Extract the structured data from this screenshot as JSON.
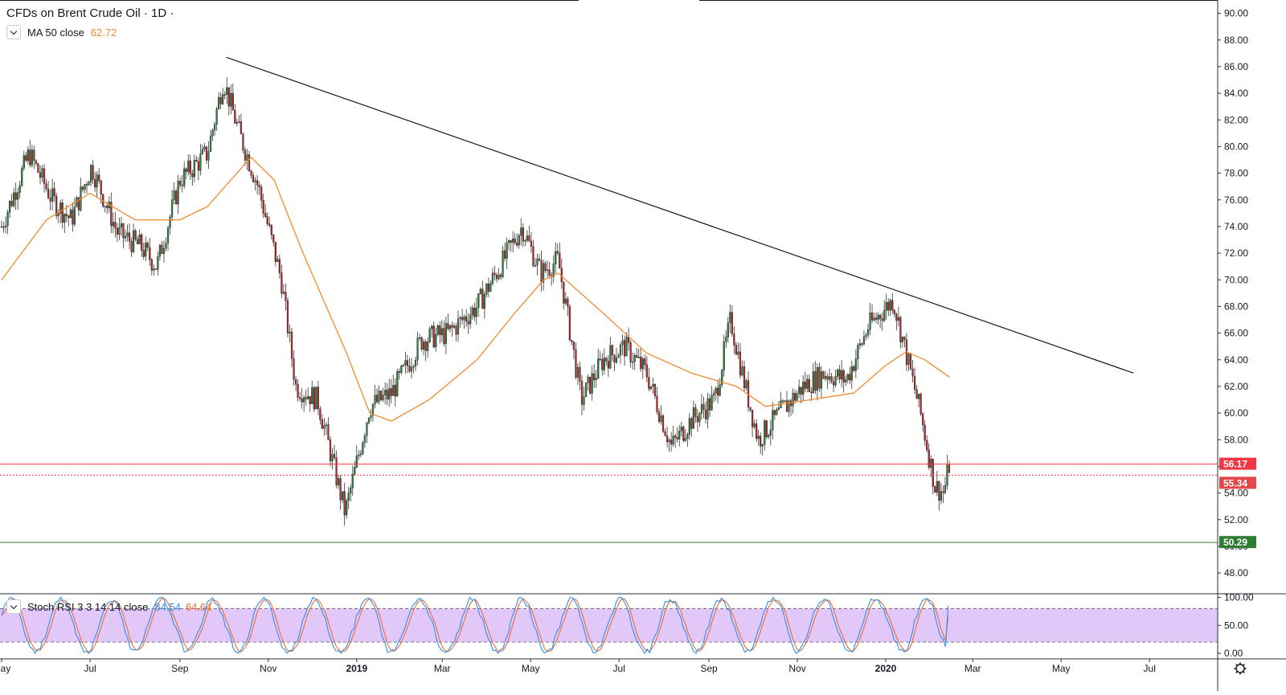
{
  "header": {
    "title": "CFDs on Brent Crude Oil · 1D ·",
    "ma_label": "MA 50 close",
    "ma_value": "62.72",
    "rsi_label": "Stoch RSI 3 3 14 14 close",
    "rsi_k": "84.54",
    "rsi_d": "64.64"
  },
  "colors": {
    "up": "#2e7d3c",
    "down": "#b5262b",
    "ma": "#f28b30",
    "trendline": "#131722",
    "resistance": "#f23645",
    "support": "#2e7d32",
    "rsi_k": "#2f8fef",
    "rsi_d": "#ef6c2f",
    "rsi_band": "#e2c8f8"
  },
  "chart_data": [
    {
      "type": "candlestick",
      "title": "CFDs on Brent Crude Oil · 1D ·",
      "x_labels": [
        "May",
        "Jul",
        "Sep",
        "Nov",
        "2019",
        "Mar",
        "May",
        "Jul",
        "Sep",
        "Nov",
        "2020",
        "Mar",
        "May",
        "Jul"
      ],
      "ylim": [
        46.5,
        91.0
      ],
      "y_ticks": [
        "48.00",
        "50.00",
        "52.00",
        "54.00",
        "56.00",
        "58.00",
        "60.00",
        "62.00",
        "64.00",
        "66.00",
        "68.00",
        "70.00",
        "72.00",
        "74.00",
        "76.00",
        "78.00",
        "80.00",
        "82.00",
        "84.00",
        "86.00",
        "88.00",
        "90.00"
      ],
      "close_points": [
        [
          "2018-05-01",
          74.0
        ],
        [
          "2018-05-20",
          79.5
        ],
        [
          "2018-06-05",
          76.0
        ],
        [
          "2018-06-18",
          74.5
        ],
        [
          "2018-07-02",
          78.5
        ],
        [
          "2018-07-20",
          73.5
        ],
        [
          "2018-08-05",
          72.5
        ],
        [
          "2018-08-16",
          71.0
        ],
        [
          "2018-09-01",
          77.5
        ],
        [
          "2018-09-20",
          79.5
        ],
        [
          "2018-10-01",
          85.0
        ],
        [
          "2018-10-12",
          81.0
        ],
        [
          "2018-10-25",
          77.0
        ],
        [
          "2018-11-10",
          70.0
        ],
        [
          "2018-11-20",
          62.0
        ],
        [
          "2018-12-05",
          61.0
        ],
        [
          "2018-12-24",
          52.5
        ],
        [
          "2019-01-10",
          60.5
        ],
        [
          "2019-01-25",
          61.5
        ],
        [
          "2019-02-15",
          65.5
        ],
        [
          "2019-03-05",
          66.0
        ],
        [
          "2019-03-25",
          68.0
        ],
        [
          "2019-04-10",
          71.0
        ],
        [
          "2019-04-25",
          74.0
        ],
        [
          "2019-05-08",
          70.5
        ],
        [
          "2019-05-20",
          71.5
        ],
        [
          "2019-06-05",
          61.0
        ],
        [
          "2019-06-20",
          64.0
        ],
        [
          "2019-07-05",
          65.0
        ],
        [
          "2019-07-20",
          63.0
        ],
        [
          "2019-08-06",
          57.5
        ],
        [
          "2019-08-20",
          59.5
        ],
        [
          "2019-09-05",
          61.0
        ],
        [
          "2019-09-16",
          67.0
        ],
        [
          "2019-09-25",
          62.5
        ],
        [
          "2019-10-05",
          58.0
        ],
        [
          "2019-10-20",
          60.0
        ],
        [
          "2019-11-05",
          62.0
        ],
        [
          "2019-11-20",
          63.0
        ],
        [
          "2019-12-05",
          62.5
        ],
        [
          "2019-12-20",
          66.5
        ],
        [
          "2020-01-06",
          68.5
        ],
        [
          "2020-01-15",
          64.5
        ],
        [
          "2020-01-25",
          60.0
        ],
        [
          "2020-02-04",
          54.5
        ],
        [
          "2020-02-10",
          54.0
        ],
        [
          "2020-02-14",
          56.2
        ]
      ],
      "ma50_points": [
        [
          "2018-05-01",
          70.0
        ],
        [
          "2018-06-01",
          74.5
        ],
        [
          "2018-07-01",
          76.5
        ],
        [
          "2018-08-01",
          74.5
        ],
        [
          "2018-09-01",
          74.5
        ],
        [
          "2018-09-20",
          75.5
        ],
        [
          "2018-10-20",
          79.2
        ],
        [
          "2018-11-05",
          77.5
        ],
        [
          "2018-11-25",
          72.0
        ],
        [
          "2018-12-25",
          64.5
        ],
        [
          "2019-01-10",
          60.0
        ],
        [
          "2019-01-25",
          59.4
        ],
        [
          "2019-02-20",
          61.0
        ],
        [
          "2019-03-25",
          64.0
        ],
        [
          "2019-04-20",
          67.5
        ],
        [
          "2019-05-10",
          70.0
        ],
        [
          "2019-05-20",
          70.5
        ],
        [
          "2019-06-20",
          67.5
        ],
        [
          "2019-07-20",
          64.5
        ],
        [
          "2019-08-20",
          63.0
        ],
        [
          "2019-09-20",
          62.0
        ],
        [
          "2019-10-10",
          60.5
        ],
        [
          "2019-11-10",
          61.0
        ],
        [
          "2019-12-10",
          61.5
        ],
        [
          "2019-12-31",
          63.5
        ],
        [
          "2020-01-15",
          64.6
        ],
        [
          "2020-01-28",
          64.0
        ],
        [
          "2020-02-14",
          62.7
        ]
      ],
      "trendline": [
        [
          "2018-10-03",
          86.7
        ],
        [
          "2020-06-20",
          63.0
        ]
      ],
      "horizontal_lines": [
        {
          "value": 56.17,
          "label": "56.17"
        },
        {
          "value": 55.34,
          "label": "55.34"
        },
        {
          "value": 50.29,
          "label": "50.29"
        }
      ]
    },
    {
      "type": "line",
      "title": "Stoch RSI 3 3 14 14 close",
      "ylim": [
        -10,
        105
      ],
      "y_ticks": [
        "100.00",
        "50.00",
        "0.00"
      ],
      "band": [
        20,
        80
      ],
      "series": [
        {
          "name": "K",
          "last": 84.54
        },
        {
          "name": "D",
          "last": 64.64
        }
      ]
    }
  ]
}
